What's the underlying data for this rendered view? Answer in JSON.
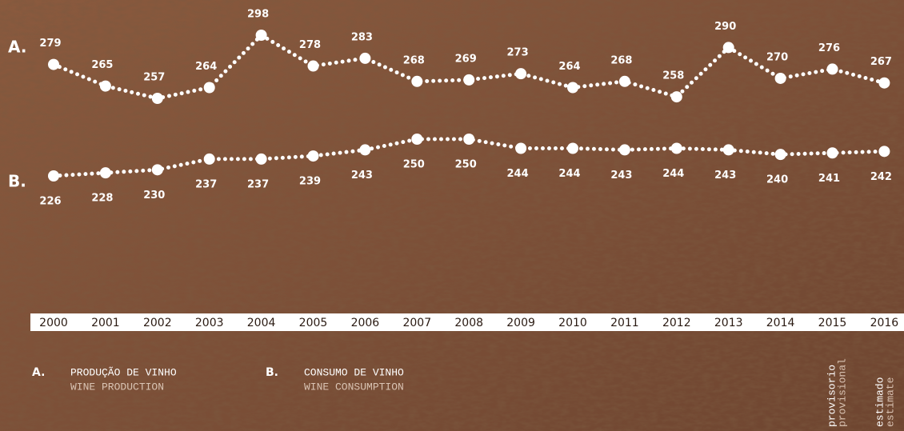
{
  "chart_data": {
    "type": "line",
    "categories": [
      "2000",
      "2001",
      "2002",
      "2003",
      "2004",
      "2005",
      "2006",
      "2007",
      "2008",
      "2009",
      "2010",
      "2011",
      "2012",
      "2013",
      "2014",
      "2015",
      "2016"
    ],
    "series": [
      {
        "marker": "A.",
        "name": "PRODUÇÃO DE VINHO",
        "name_en": "WINE PRODUCTION",
        "color": "#ffffff",
        "values": [
          279,
          265,
          257,
          264,
          298,
          278,
          283,
          268,
          269,
          273,
          264,
          268,
          258,
          290,
          270,
          276,
          267
        ]
      },
      {
        "marker": "B.",
        "name": "CONSUMO DE VINHO",
        "name_en": "WINE CONSUMPTION",
        "color": "#ffffff",
        "values": [
          226,
          228,
          230,
          237,
          237,
          239,
          243,
          250,
          250,
          244,
          244,
          243,
          244,
          243,
          240,
          241,
          242
        ]
      }
    ],
    "notes": [
      {
        "pt": "provisorio",
        "en": "provisional"
      },
      {
        "pt": "estimado",
        "en": "estimate"
      }
    ]
  }
}
